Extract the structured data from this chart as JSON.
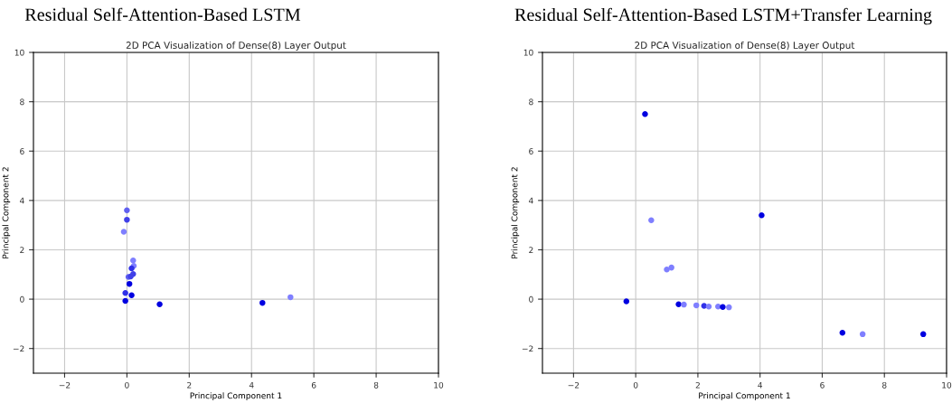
{
  "chart_data": [
    {
      "type": "scatter",
      "title": "Residual Self-Attention-Based LSTM",
      "subtitle": "2D PCA Visualization of Dense(8) Layer Output",
      "xlabel": "Principal Component 1",
      "ylabel": "Principal Component 2",
      "series": [
        {
          "x": [
            0.0,
            0.0,
            -0.1,
            0.2,
            0.22,
            0.15,
            0.2,
            0.05,
            0.12,
            0.08,
            0.15,
            -0.05,
            -0.05,
            1.05,
            4.35,
            5.25
          ],
          "values": [
            3.6,
            3.22,
            2.73,
            1.57,
            1.35,
            1.25,
            1.02,
            0.9,
            0.92,
            0.62,
            0.16,
            0.25,
            -0.07,
            -0.21,
            -0.15,
            0.08
          ],
          "colors": [
            "#6060f0",
            "#4040e8",
            "#7f7fff",
            "#7f7fff",
            "#7f7fff",
            "#3030e8",
            "#4040e8",
            "#6060f0",
            "#4040e8",
            "#0000e0",
            "#0000e0",
            "#3030e8",
            "#0000e0",
            "#0000e0",
            "#0000e0",
            "#7f7fff"
          ]
        }
      ],
      "xlim": [
        -3,
        10
      ],
      "ylim": [
        -3,
        10
      ],
      "xticks": [
        {
          "value": -2,
          "label": "−2"
        },
        0,
        2,
        4,
        6,
        8,
        10
      ],
      "yticks": [
        {
          "value": -2,
          "label": "−2"
        },
        0,
        2,
        4,
        6,
        8,
        10
      ],
      "grid": true,
      "marker": "circle"
    },
    {
      "type": "scatter",
      "title": "Residual Self-Attention-Based LSTM+Transfer Learning",
      "subtitle": "2D PCA Visualization of Dense(8) Layer Output",
      "xlabel": "Principal Component 1",
      "ylabel": "Principal Component 2",
      "series": [
        {
          "x": [
            0.3,
            0.5,
            4.05,
            1.0,
            1.15,
            -0.3,
            1.38,
            1.55,
            1.95,
            2.2,
            2.35,
            2.65,
            2.8,
            3.0,
            6.65,
            7.3,
            9.25
          ],
          "values": [
            7.5,
            3.2,
            3.4,
            1.2,
            1.28,
            -0.09,
            -0.21,
            -0.22,
            -0.25,
            -0.27,
            -0.3,
            -0.3,
            -0.32,
            -0.33,
            -1.36,
            -1.42,
            -1.42
          ],
          "colors": [
            "#0000e0",
            "#7f7fff",
            "#0000e0",
            "#7f7fff",
            "#7f7fff",
            "#0000e0",
            "#0000e0",
            "#7f7fff",
            "#7f7fff",
            "#3030e8",
            "#7f7fff",
            "#7f7fff",
            "#0000e0",
            "#7f7fff",
            "#0000e0",
            "#7f7fff",
            "#0000e0"
          ]
        }
      ],
      "xlim": [
        -3,
        10
      ],
      "ylim": [
        -3,
        10
      ],
      "xticks": [
        {
          "value": -2,
          "label": "−2"
        },
        0,
        2,
        4,
        6,
        8,
        10
      ],
      "yticks": [
        {
          "value": -2,
          "label": "−2"
        },
        0,
        2,
        4,
        6,
        8,
        10
      ],
      "grid": true,
      "marker": "circle"
    }
  ]
}
